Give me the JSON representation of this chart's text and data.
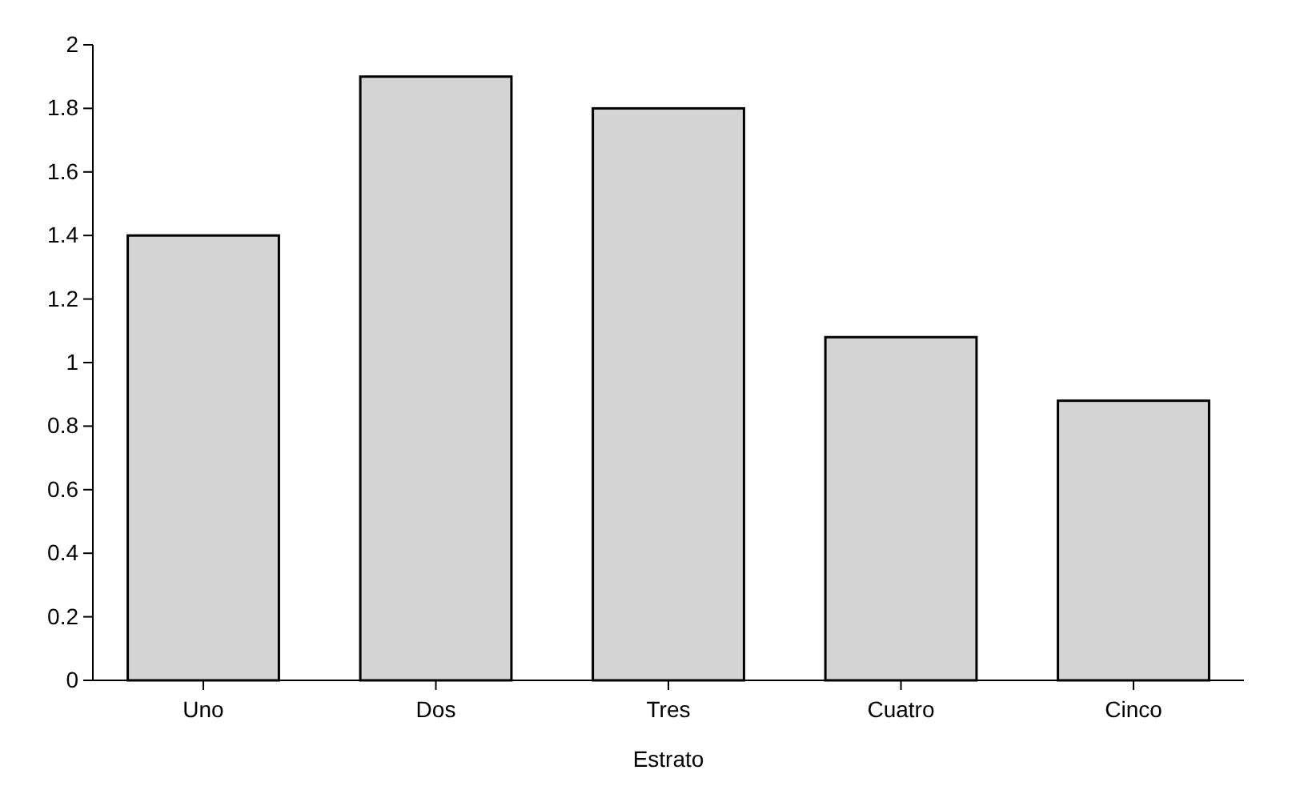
{
  "chart_data": {
    "type": "bar",
    "xlabel": "Estrato",
    "categories": [
      "Uno",
      "Dos",
      "Tres",
      "Cuatro",
      "Cinco"
    ],
    "values": [
      1.4,
      1.9,
      1.8,
      1.08,
      0.88
    ],
    "color": "#d4d4d4",
    "ylim": [
      0,
      2
    ],
    "yticks": [
      0,
      0.2,
      0.4,
      0.6,
      0.8,
      1,
      1.2,
      1.4,
      1.6,
      1.8,
      2
    ],
    "grid": false
  }
}
